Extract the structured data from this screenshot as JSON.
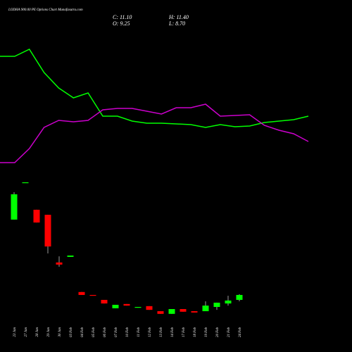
{
  "chart_data": {
    "type": "candlestick",
    "title": "LODHA 900.00 PE Options Chart Munafasutra.com",
    "ohlc_labels": [
      "C: 11.10",
      "H: 11.40",
      "O: 9.25",
      "L: 8.70"
    ],
    "categories": [
      "23 Jan",
      "27 Jan",
      "28 Jan",
      "29 Jan",
      "30 Jan",
      "03 Feb",
      "04 Feb",
      "05 Feb",
      "06 Feb",
      "07 Feb",
      "10 Feb",
      "11 Feb",
      "12 Feb",
      "13 Feb",
      "14 Feb",
      "17 Feb",
      "18 Feb",
      "19 Feb",
      "20 Feb",
      "21 Feb",
      "24 Feb"
    ],
    "open": [
      39.4,
      53.2,
      43.1,
      41.2,
      23.3,
      25.4,
      12.2,
      11.1,
      9.25,
      6.1,
      7.7,
      6.3,
      6.9,
      5.0,
      4.0,
      5.8,
      5.0,
      5.0,
      6.6,
      7.9,
      9.25
    ],
    "high": [
      49.7,
      53.4,
      43.1,
      41.2,
      25.6,
      25.9,
      12.2,
      11.1,
      9.25,
      7.4,
      7.7,
      6.6,
      6.9,
      5.0,
      5.8,
      5.8,
      5.0,
      8.7,
      8.2,
      10.8,
      11.4
    ],
    "low": [
      39.4,
      53.2,
      38.3,
      26.7,
      21.7,
      25.4,
      11.1,
      10.9,
      7.9,
      6.1,
      7.1,
      6.3,
      5.5,
      4.0,
      4.0,
      4.8,
      4.5,
      5.0,
      5.5,
      7.1,
      8.7
    ],
    "close": [
      48.9,
      53.4,
      38.3,
      29.3,
      22.5,
      25.9,
      11.1,
      10.9,
      7.9,
      7.4,
      7.1,
      6.6,
      5.5,
      4.0,
      5.8,
      4.8,
      4.5,
      7.1,
      8.2,
      9.0,
      11.1
    ],
    "up_color": "#00ff00",
    "down_color": "#ff0000",
    "ylim": [
      3,
      54
    ],
    "overlay": {
      "ylim": [
        0,
        100
      ],
      "series": [
        {
          "color": "#00ff00",
          "values": [
            85,
            85,
            90,
            73.5,
            62.5,
            55.5,
            59,
            42.5,
            42.5,
            39,
            37.5,
            37.5,
            37,
            36.5,
            34.5,
            36.5,
            35,
            35.5,
            38,
            39,
            40,
            42.5
          ]
        },
        {
          "color": "#cc00cc",
          "values": [
            9.5,
            9.5,
            19.5,
            34.5,
            39.5,
            38.5,
            39.5,
            47,
            48,
            48,
            46,
            44,
            48.5,
            48.5,
            51,
            42.5,
            43,
            43.5,
            36,
            32.5,
            30,
            24.5
          ]
        }
      ]
    }
  }
}
